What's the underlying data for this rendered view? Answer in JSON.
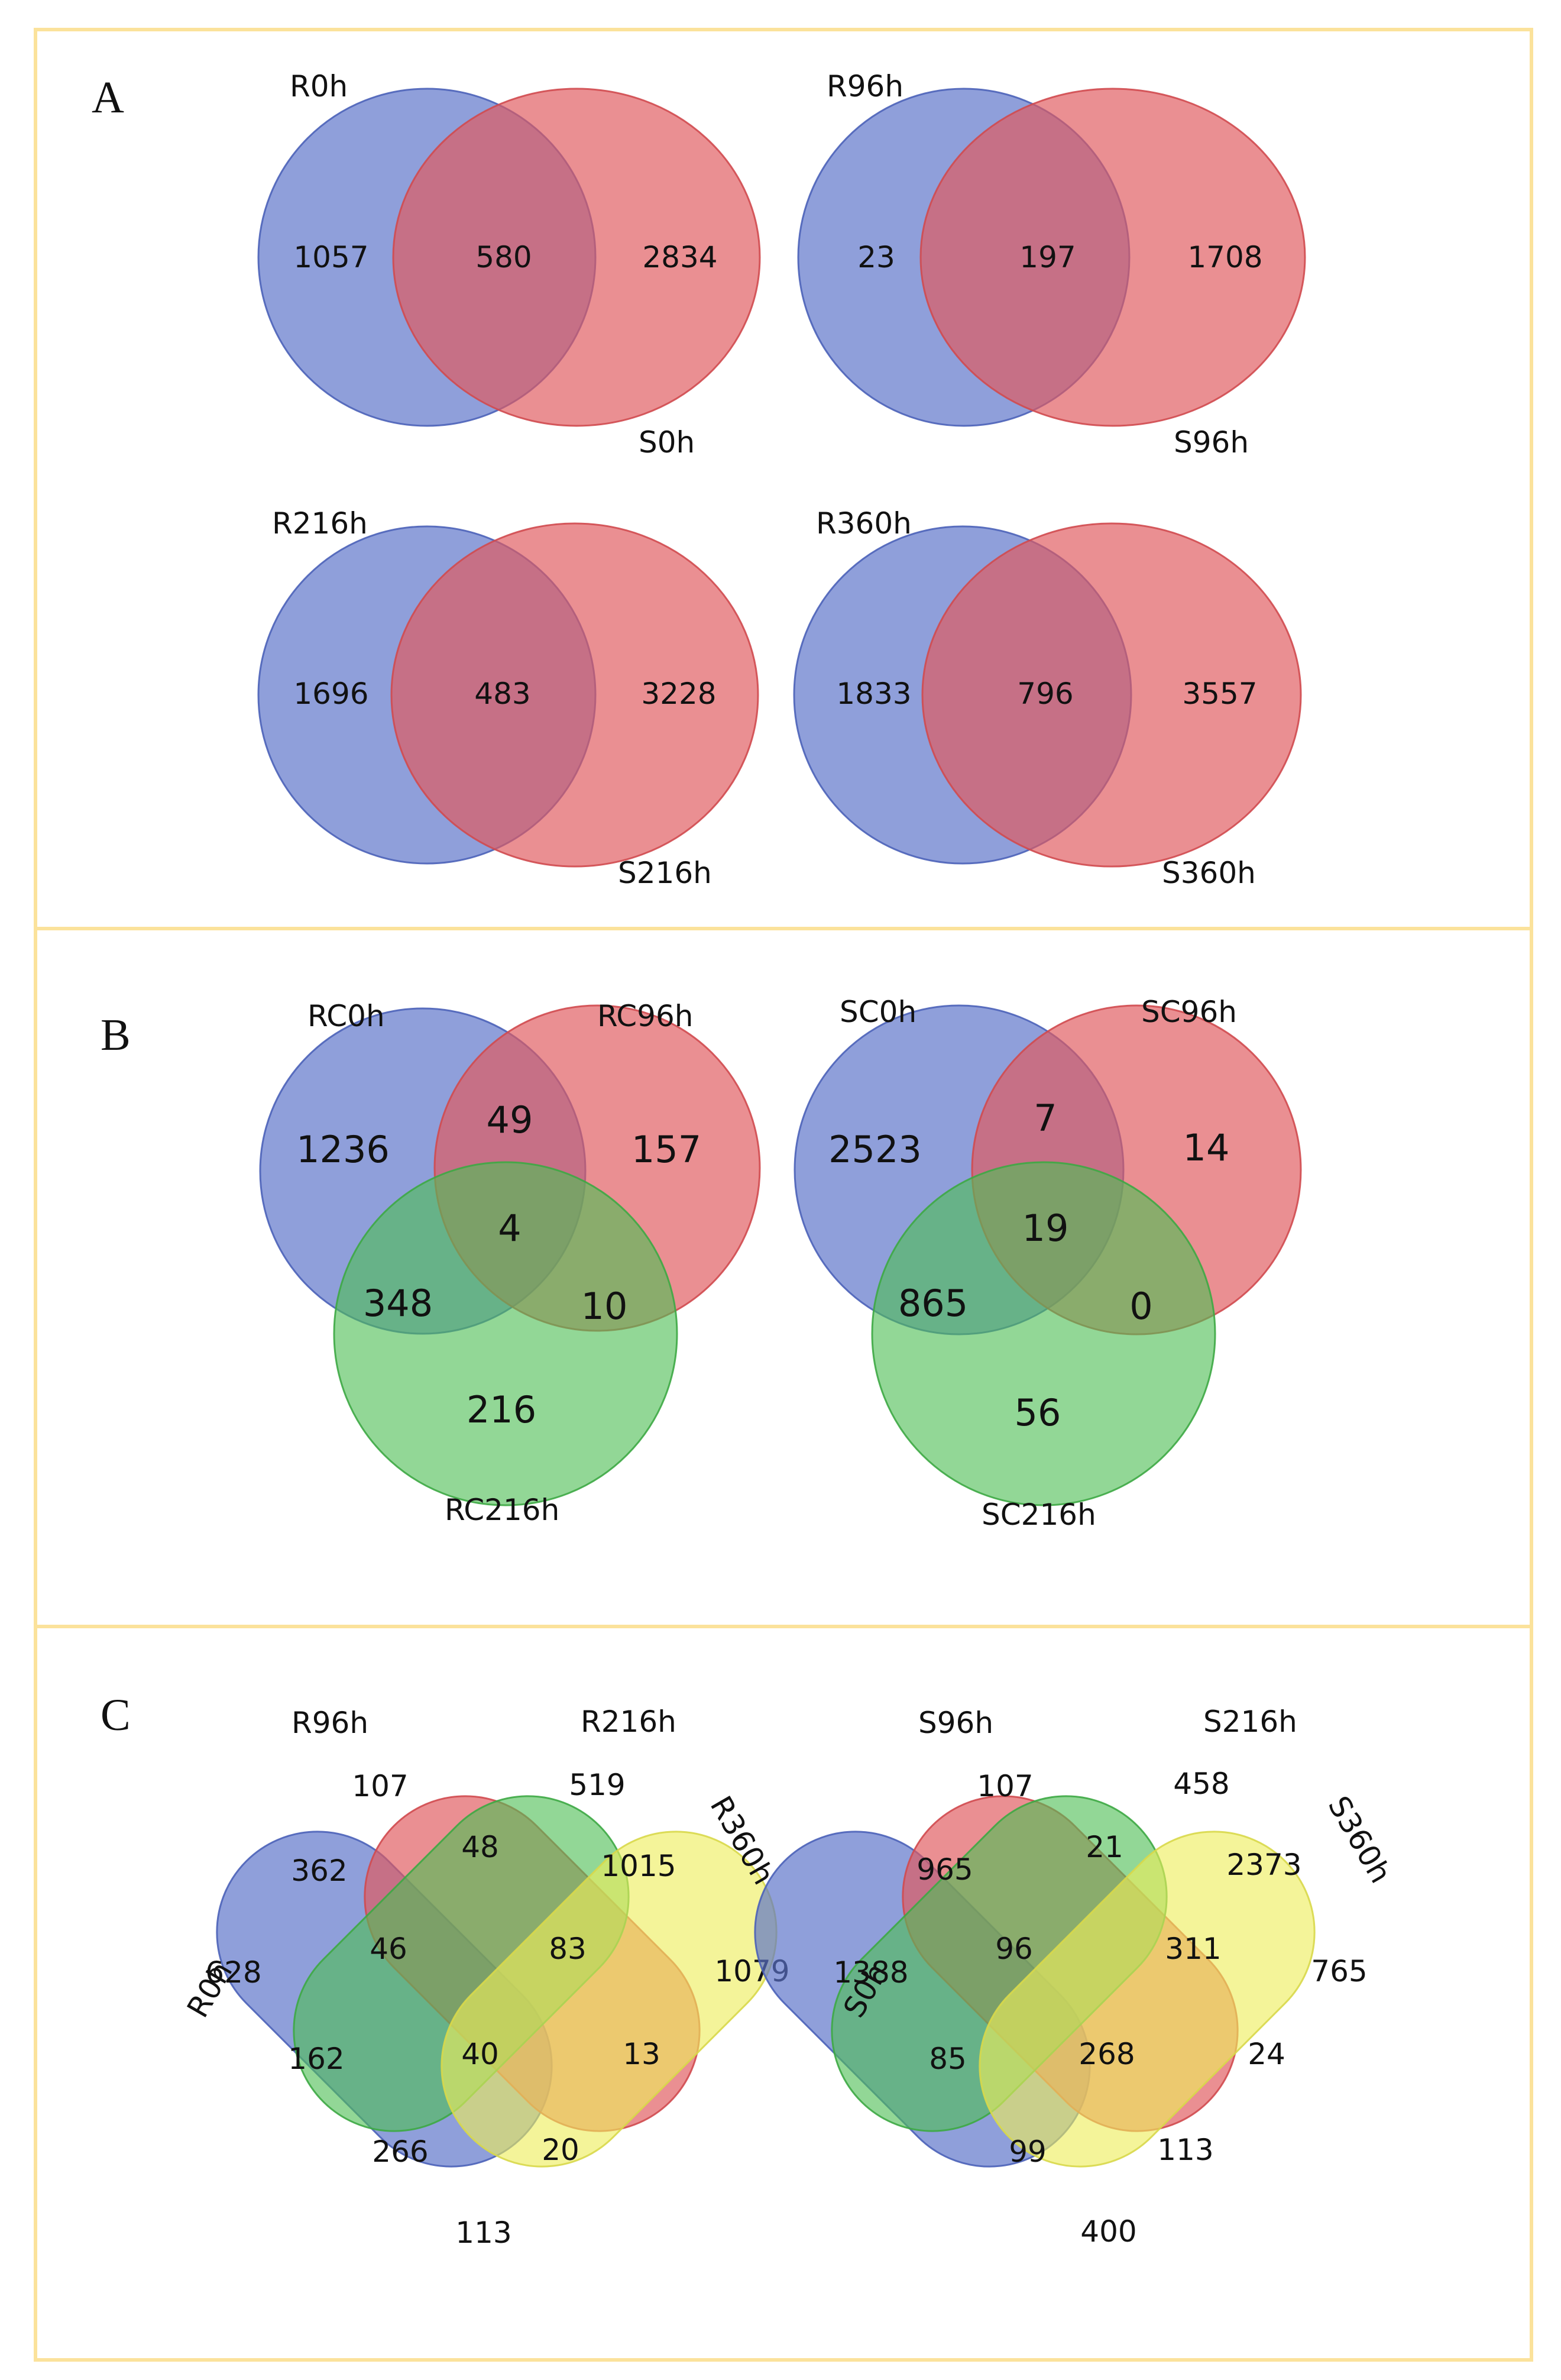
{
  "colors": {
    "blue": "#5a72c8",
    "red": "#e05a5e",
    "green": "#4fbf56",
    "yellow": "#eeee5a",
    "frame": "#fbe29b"
  },
  "panel_a": {
    "letter": "A",
    "diagrams": [
      {
        "set1": "R0h",
        "set2": "S0h",
        "only1": "1057",
        "both": "580",
        "only2": "2834"
      },
      {
        "set1": "R96h",
        "set2": "S96h",
        "only1": "23",
        "both": "197",
        "only2": "1708"
      },
      {
        "set1": "R216h",
        "set2": "S216h",
        "only1": "1696",
        "both": "483",
        "only2": "3228"
      },
      {
        "set1": "R360h",
        "set2": "S360h",
        "only1": "1833",
        "both": "796",
        "only2": "3557"
      }
    ]
  },
  "panel_b": {
    "letter": "B",
    "diagrams": [
      {
        "set1": "RC0h",
        "set2": "RC96h",
        "set3": "RC216h",
        "only1": "1236",
        "only2": "157",
        "only3": "216",
        "s12": "49",
        "s13": "348",
        "s23": "10",
        "s123": "4"
      },
      {
        "set1": "SC0h",
        "set2": "SC96h",
        "set3": "SC216h",
        "only1": "2523",
        "only2": "14",
        "only3": "56",
        "s12": "7",
        "s13": "865",
        "s23": "0",
        "s123": "19"
      }
    ]
  },
  "panel_c": {
    "letter": "C",
    "diagrams": [
      {
        "set1": "R0h",
        "set2": "R96h",
        "set3": "R216h",
        "set4": "R360h",
        "only1": "628",
        "only2": "107",
        "only3": "519",
        "only4": "1079",
        "r12": "362",
        "r34": "1015",
        "r23": "48",
        "r14": "113",
        "r123": "46",
        "r234": "83",
        "r13": "162",
        "r24": "13",
        "r1234": "40",
        "r134": "266",
        "r124": "20"
      },
      {
        "set1": "S0h",
        "set2": "S96h",
        "set3": "S216h",
        "set4": "S360h",
        "only1": "1388",
        "only2": "107",
        "only3": "458",
        "only4": "765",
        "r12": "965",
        "r34": "2373",
        "r23": "21",
        "r14": "400",
        "r123": "96",
        "r234": "311",
        "r13": "85",
        "r24": "24",
        "r1234": "268",
        "r134": "99",
        "r124": "113"
      }
    ]
  }
}
